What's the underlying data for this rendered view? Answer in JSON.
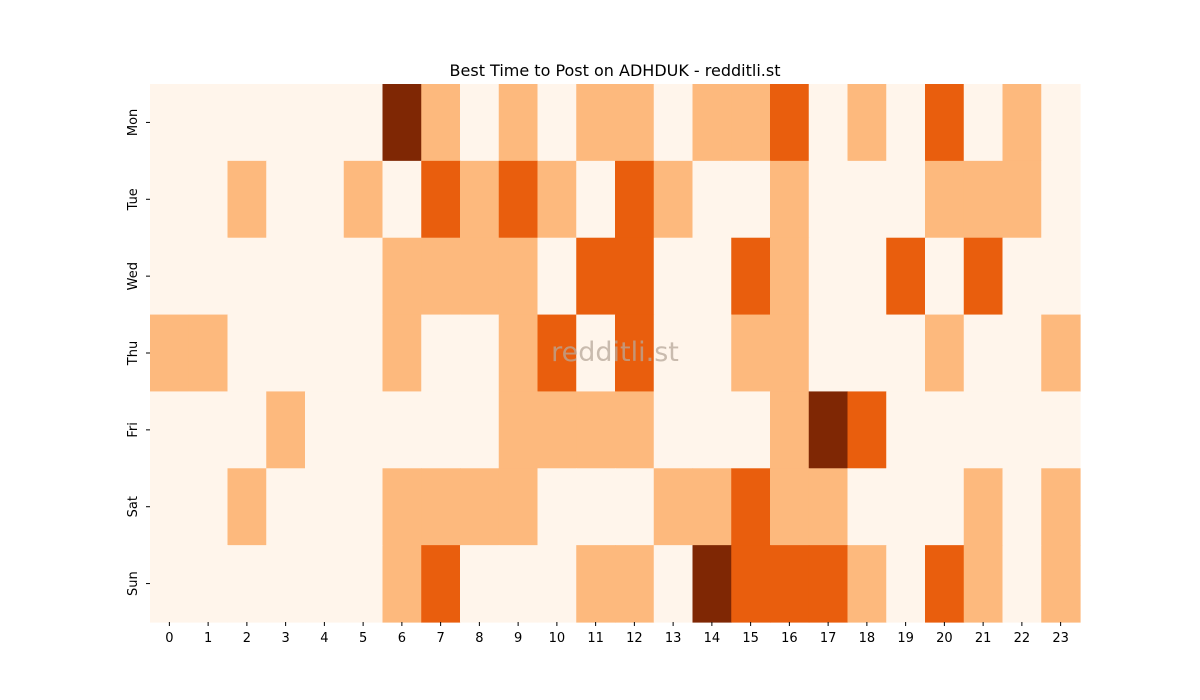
{
  "chart_data": {
    "type": "heatmap",
    "title": "Best Time to Post on ADHDUK - redditli.st",
    "watermark": "redditli.st",
    "x_categories": [
      "0",
      "1",
      "2",
      "3",
      "4",
      "5",
      "6",
      "7",
      "8",
      "9",
      "10",
      "11",
      "12",
      "13",
      "14",
      "15",
      "16",
      "17",
      "18",
      "19",
      "20",
      "21",
      "22",
      "23"
    ],
    "y_categories": [
      "Mon",
      "Tue",
      "Wed",
      "Thu",
      "Fri",
      "Sat",
      "Sun"
    ],
    "values": [
      [
        0,
        0,
        0,
        0,
        0,
        0,
        3,
        1,
        0,
        1,
        0,
        1,
        1,
        0,
        1,
        1,
        2,
        0,
        1,
        0,
        2,
        0,
        1,
        0
      ],
      [
        0,
        0,
        1,
        0,
        0,
        1,
        0,
        2,
        1,
        2,
        1,
        0,
        2,
        1,
        0,
        0,
        1,
        0,
        0,
        0,
        1,
        1,
        1,
        0
      ],
      [
        0,
        0,
        0,
        0,
        0,
        0,
        1,
        1,
        1,
        1,
        0,
        2,
        2,
        0,
        0,
        2,
        1,
        0,
        0,
        2,
        0,
        2,
        0,
        0
      ],
      [
        1,
        1,
        0,
        0,
        0,
        0,
        1,
        0,
        0,
        1,
        2,
        0,
        2,
        0,
        0,
        1,
        1,
        0,
        0,
        0,
        1,
        0,
        0,
        1
      ],
      [
        0,
        0,
        0,
        1,
        0,
        0,
        0,
        0,
        0,
        1,
        1,
        1,
        1,
        0,
        0,
        0,
        1,
        3,
        2,
        0,
        0,
        0,
        0,
        0
      ],
      [
        0,
        0,
        1,
        0,
        0,
        0,
        1,
        1,
        1,
        1,
        0,
        0,
        0,
        1,
        1,
        2,
        1,
        1,
        0,
        0,
        0,
        1,
        0,
        1
      ],
      [
        0,
        0,
        0,
        0,
        0,
        0,
        1,
        2,
        0,
        0,
        0,
        1,
        1,
        0,
        3,
        2,
        2,
        2,
        1,
        0,
        2,
        1,
        0,
        1
      ]
    ],
    "value_range": [
      0,
      3
    ],
    "color_scale": [
      "#fff5eb",
      "#fdb97d",
      "#e95e0d",
      "#7f2704"
    ],
    "colorbar": false,
    "grid": false
  }
}
